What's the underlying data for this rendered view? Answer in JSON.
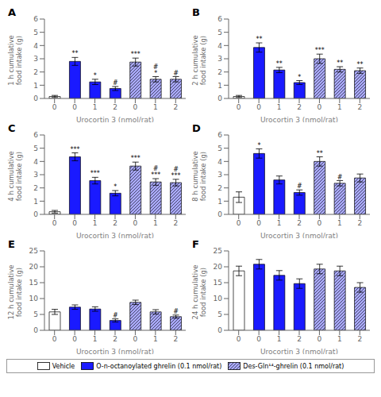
{
  "chart_data": [
    {
      "type": "bar",
      "title": "A",
      "xlabel": "Urocortin 3 (nmol/rat)",
      "ylabel": "1 h cumulative\nfood intake (g)",
      "categories": [
        "0",
        "0",
        "1",
        "2",
        "0",
        "1",
        "2"
      ],
      "ylim": [
        0,
        6
      ],
      "yticks": [
        0,
        1,
        2,
        3,
        4,
        5,
        6
      ],
      "series": [
        {
          "name": "Vehicle",
          "color": "#ffffff",
          "values": [
            0.15,
            null,
            null,
            null,
            null,
            null,
            null
          ],
          "errors": [
            0.08,
            null,
            null,
            null,
            null,
            null,
            null
          ],
          "annotations": [
            null,
            null,
            null,
            null,
            null,
            null,
            null
          ]
        },
        {
          "name": "O-n-octanoylated ghrelin (0.1 nmol/rat)",
          "color": "#1a1aff",
          "values": [
            null,
            2.8,
            1.25,
            0.75,
            null,
            null,
            null
          ],
          "errors": [
            null,
            0.3,
            0.2,
            0.15,
            null,
            null,
            null
          ],
          "annotations": [
            null,
            "**",
            "*",
            "#",
            null,
            null,
            null
          ]
        },
        {
          "name": "Des-Gln¹⁴-ghrelin (0.1 nmol/rat)",
          "color": "#aaaaff",
          "values": [
            null,
            null,
            null,
            null,
            2.75,
            1.45,
            1.45
          ],
          "errors": [
            null,
            null,
            null,
            null,
            0.3,
            0.2,
            0.2
          ],
          "annotations": [
            null,
            null,
            null,
            null,
            "***",
            "#\n*",
            "#"
          ]
        }
      ]
    },
    {
      "type": "bar",
      "title": "B",
      "xlabel": "Urocortin 3 (nmol/rat)",
      "ylabel": "2 h cumulative\nfood intake (g)",
      "categories": [
        "0",
        "0",
        "1",
        "2",
        "0",
        "1",
        "2"
      ],
      "ylim": [
        0,
        6
      ],
      "yticks": [
        0,
        1,
        2,
        3,
        4,
        5,
        6
      ],
      "series": [
        {
          "name": "Vehicle",
          "color": "#ffffff",
          "values": [
            0.15,
            null,
            null,
            null,
            null,
            null,
            null
          ],
          "errors": [
            0.08,
            null,
            null,
            null,
            null,
            null,
            null
          ],
          "annotations": [
            null,
            null,
            null,
            null,
            null,
            null,
            null
          ]
        },
        {
          "name": "O-n-octanoylated ghrelin (0.1 nmol/rat)",
          "color": "#1a1aff",
          "values": [
            null,
            3.85,
            2.15,
            1.2,
            null,
            null,
            null
          ],
          "errors": [
            null,
            0.35,
            0.2,
            0.15,
            null,
            null,
            null
          ],
          "annotations": [
            null,
            "**",
            "**",
            "*",
            null,
            null,
            null
          ]
        },
        {
          "name": "Des-Gln¹⁴-ghrelin (0.1 nmol/rat)",
          "color": "#aaaaff",
          "values": [
            null,
            null,
            null,
            null,
            3.0,
            2.2,
            2.1
          ],
          "errors": [
            null,
            null,
            null,
            null,
            0.35,
            0.2,
            0.2
          ],
          "annotations": [
            null,
            null,
            null,
            null,
            "***",
            "**",
            "**"
          ]
        }
      ]
    },
    {
      "type": "bar",
      "title": "C",
      "xlabel": "Urocortin 3 (nmol/rat)",
      "ylabel": "4 h cumulative\nfood intake (g)",
      "categories": [
        "0",
        "0",
        "1",
        "2",
        "0",
        "1",
        "2"
      ],
      "ylim": [
        0,
        6
      ],
      "yticks": [
        0,
        1,
        2,
        3,
        4,
        5,
        6
      ],
      "series": [
        {
          "name": "Vehicle",
          "color": "#ffffff",
          "values": [
            0.2,
            null,
            null,
            null,
            null,
            null,
            null
          ],
          "errors": [
            0.1,
            null,
            null,
            null,
            null,
            null,
            null
          ],
          "annotations": [
            null,
            null,
            null,
            null,
            null,
            null,
            null
          ]
        },
        {
          "name": "O-n-octanoylated ghrelin (0.1 nmol/rat)",
          "color": "#1a1aff",
          "values": [
            null,
            4.35,
            2.55,
            1.6,
            null,
            null,
            null
          ],
          "errors": [
            null,
            0.3,
            0.25,
            0.2,
            null,
            null,
            null
          ],
          "annotations": [
            null,
            "***",
            "***",
            "*",
            null,
            null,
            null
          ]
        },
        {
          "name": "Des-Gln¹⁴-ghrelin (0.1 nmol/rat)",
          "color": "#aaaaff",
          "values": [
            null,
            null,
            null,
            null,
            3.65,
            2.45,
            2.4
          ],
          "errors": [
            null,
            null,
            null,
            null,
            0.3,
            0.25,
            0.25
          ],
          "annotations": [
            null,
            null,
            null,
            null,
            "***",
            "#\n***",
            "#\n***"
          ]
        }
      ]
    },
    {
      "type": "bar",
      "title": "D",
      "xlabel": "Urocortin 3 (nmol/rat)",
      "ylabel": "8 h cumulative\nfood intake (g)",
      "categories": [
        "0",
        "0",
        "1",
        "2",
        "0",
        "1",
        "2"
      ],
      "ylim": [
        0,
        6
      ],
      "yticks": [
        0,
        1,
        2,
        3,
        4,
        5,
        6
      ],
      "series": [
        {
          "name": "Vehicle",
          "color": "#ffffff",
          "values": [
            1.3,
            null,
            null,
            null,
            null,
            null,
            null
          ],
          "errors": [
            0.4,
            null,
            null,
            null,
            null,
            null,
            null
          ],
          "annotations": [
            null,
            null,
            null,
            null,
            null,
            null,
            null
          ]
        },
        {
          "name": "O-n-octanoylated ghrelin (0.1 nmol/rat)",
          "color": "#1a1aff",
          "values": [
            null,
            4.6,
            2.6,
            1.65,
            null,
            null,
            null
          ],
          "errors": [
            null,
            0.35,
            0.3,
            0.2,
            null,
            null,
            null
          ],
          "annotations": [
            null,
            "*",
            null,
            "#",
            null,
            null,
            null
          ]
        },
        {
          "name": "Des-Gln¹⁴-ghrelin (0.1 nmol/rat)",
          "color": "#aaaaff",
          "values": [
            null,
            null,
            null,
            null,
            4.0,
            2.35,
            2.75
          ],
          "errors": [
            null,
            null,
            null,
            null,
            0.35,
            0.2,
            0.3
          ],
          "annotations": [
            null,
            null,
            null,
            null,
            "**",
            "#",
            null
          ]
        }
      ]
    },
    {
      "type": "bar",
      "title": "E",
      "xlabel": "Urocortin 3 (nmol/rat)",
      "ylabel": "12 h cumulative\nfood intake (g)",
      "categories": [
        "0",
        "0",
        "1",
        "2",
        "0",
        "1",
        "2"
      ],
      "ylim": [
        0,
        25
      ],
      "yticks": [
        0,
        5,
        10,
        15,
        20,
        25
      ],
      "series": [
        {
          "name": "Vehicle",
          "color": "#ffffff",
          "values": [
            5.8,
            null,
            null,
            null,
            null,
            null,
            null
          ],
          "errors": [
            0.8,
            null,
            null,
            null,
            null,
            null,
            null
          ],
          "annotations": [
            null,
            null,
            null,
            null,
            null,
            null,
            null
          ]
        },
        {
          "name": "O-n-octanoylated ghrelin (0.1 nmol/rat)",
          "color": "#1a1aff",
          "values": [
            null,
            7.3,
            6.7,
            3.1,
            null,
            null,
            null
          ],
          "errors": [
            null,
            0.7,
            0.7,
            0.5,
            null,
            null,
            null
          ],
          "annotations": [
            null,
            null,
            null,
            "#",
            null,
            null,
            null
          ]
        },
        {
          "name": "Des-Gln¹⁴-ghrelin (0.1 nmol/rat)",
          "color": "#aaaaff",
          "values": [
            null,
            null,
            null,
            null,
            8.8,
            5.8,
            4.3
          ],
          "errors": [
            null,
            null,
            null,
            null,
            0.7,
            0.7,
            0.5
          ],
          "annotations": [
            null,
            null,
            null,
            null,
            null,
            null,
            "#"
          ]
        }
      ]
    },
    {
      "type": "bar",
      "title": "F",
      "xlabel": "Urocortin 3 (nmol/rat)",
      "ylabel": "24 h cumulative\nfood intake (g)",
      "categories": [
        "0",
        "0",
        "1",
        "2",
        "0",
        "1",
        "2"
      ],
      "ylim": [
        0,
        25
      ],
      "yticks": [
        0,
        5,
        10,
        15,
        20,
        25
      ],
      "series": [
        {
          "name": "Vehicle",
          "color": "#ffffff",
          "values": [
            18.7,
            null,
            null,
            null,
            null,
            null,
            null
          ],
          "errors": [
            1.5,
            null,
            null,
            null,
            null,
            null,
            null
          ],
          "annotations": [
            null,
            null,
            null,
            null,
            null,
            null,
            null
          ]
        },
        {
          "name": "O-n-octanoylated ghrelin (0.1 nmol/rat)",
          "color": "#1a1aff",
          "values": [
            null,
            20.8,
            17.3,
            14.7,
            null,
            null,
            null
          ],
          "errors": [
            null,
            1.5,
            1.5,
            1.5,
            null,
            null,
            null
          ],
          "annotations": [
            null,
            null,
            null,
            null,
            null,
            null,
            null
          ]
        },
        {
          "name": "Des-Gln¹⁴-ghrelin (0.1 nmol/rat)",
          "color": "#aaaaff",
          "values": [
            null,
            null,
            null,
            null,
            19.3,
            18.7,
            13.5
          ],
          "errors": [
            null,
            null,
            null,
            null,
            1.5,
            1.5,
            1.5
          ],
          "annotations": [
            null,
            null,
            null,
            null,
            null,
            null,
            null
          ]
        }
      ]
    }
  ]
}
